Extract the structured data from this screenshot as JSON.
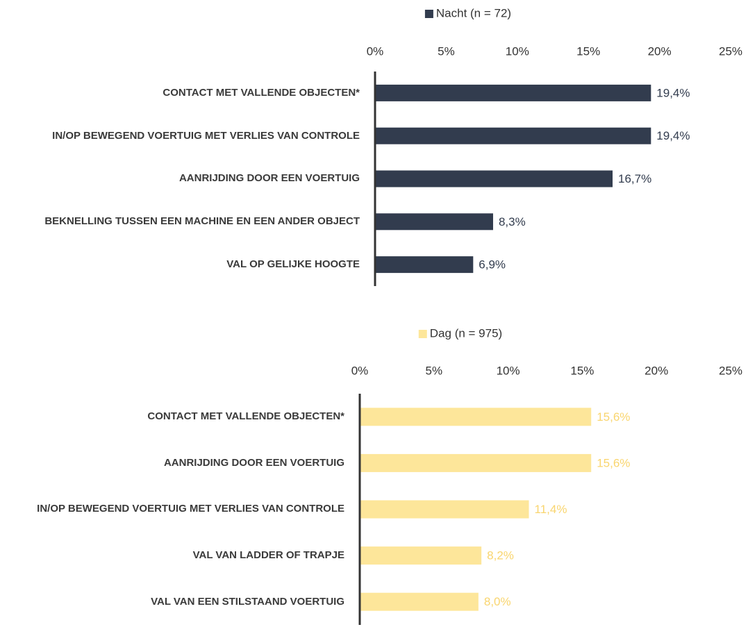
{
  "chart_data": [
    {
      "type": "barh",
      "categories": [
        "CONTACT MET VALLENDE OBJECTEN*",
        "IN/OP BEWEGEND VOERTUIG MET VERLIES VAN CONTROLE",
        "AANRIJDING DOOR EEN VOERTUIG",
        "BEKNELLING TUSSEN EEN MACHINE EN EEN ANDER OBJECT",
        "VAL OP GELIJKE HOOGTE"
      ],
      "series": [
        {
          "name": "Nacht (n = 72)",
          "color": "#323c4e",
          "label_color": "#323c4e",
          "values": [
            19.4,
            19.4,
            16.7,
            8.3,
            6.9
          ],
          "value_labels": [
            "19,4%",
            "19,4%",
            "16,7%",
            "8,3%",
            "6,9%"
          ]
        }
      ],
      "xlim": [
        0,
        25
      ],
      "xticks": [
        {
          "value": 0,
          "label": "0%"
        },
        {
          "value": 5,
          "label": "5%"
        },
        {
          "value": 10,
          "label": "10%"
        },
        {
          "value": 15,
          "label": "15%"
        },
        {
          "value": 20,
          "label": "20%"
        },
        {
          "value": 25,
          "label": "25%"
        }
      ],
      "legend": "top",
      "grid": false
    },
    {
      "type": "barh",
      "categories": [
        "CONTACT MET VALLENDE OBJECTEN*",
        "AANRIJDING DOOR EEN VOERTUIG",
        "IN/OP BEWEGEND VOERTUIG MET VERLIES VAN CONTROLE",
        "VAL VAN LADDER OF TRAPJE",
        "VAL VAN EEN STILSTAAND VOERTUIG"
      ],
      "series": [
        {
          "name": "Dag (n = 975)",
          "color": "#fde69a",
          "label_color": "#f9d56e",
          "values": [
            15.6,
            15.6,
            11.4,
            8.2,
            8.0
          ],
          "value_labels": [
            "15,6%",
            "15,6%",
            "11,4%",
            "8,2%",
            "8,0%"
          ]
        }
      ],
      "xlim": [
        0,
        25
      ],
      "xticks": [
        {
          "value": 0,
          "label": "0%"
        },
        {
          "value": 5,
          "label": "5%"
        },
        {
          "value": 10,
          "label": "10%"
        },
        {
          "value": 15,
          "label": "15%"
        },
        {
          "value": 20,
          "label": "20%"
        },
        {
          "value": 25,
          "label": "25%"
        }
      ],
      "legend": "top",
      "grid": false
    }
  ]
}
